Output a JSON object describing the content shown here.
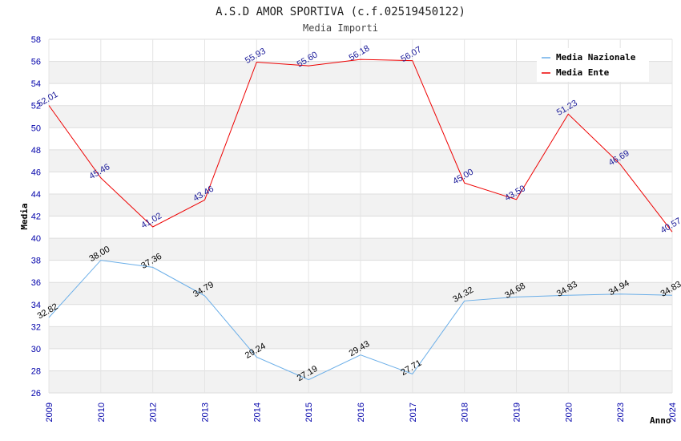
{
  "chart_data": {
    "type": "line",
    "title": "A.S.D AMOR SPORTIVA (c.f.02519450122)",
    "subtitle": "Media Importi",
    "xlabel": "Anno",
    "ylabel": "Media",
    "ylim": [
      26,
      58
    ],
    "ytick_step": 2,
    "grid": true,
    "legend_position": "top-right",
    "categories": [
      "2009",
      "2010",
      "2012",
      "2013",
      "2014",
      "2015",
      "2016",
      "2017",
      "2018",
      "2019",
      "2020",
      "2023",
      "2024"
    ],
    "series": [
      {
        "name": "Media Nazionale",
        "color": "#6aaee8",
        "values": [
          32.82,
          38.0,
          37.36,
          34.79,
          29.24,
          27.19,
          29.43,
          27.71,
          34.32,
          34.68,
          34.83,
          34.94,
          34.83
        ],
        "labels": [
          "32.82",
          "38.00",
          "37.36",
          "34.79",
          "29.24",
          "27.19",
          "29.43",
          "27.71",
          "34.32",
          "34.68",
          "34.83",
          "34.94",
          "34.83"
        ]
      },
      {
        "name": "Media Ente",
        "color": "#ee0000",
        "values": [
          52.01,
          45.46,
          41.02,
          43.46,
          55.93,
          55.6,
          56.18,
          56.07,
          45.0,
          43.5,
          51.23,
          46.69,
          40.57
        ],
        "labels": [
          "52.01",
          "45.46",
          "41.02",
          "43.46",
          "55.93",
          "55.60",
          "56.18",
          "56.07",
          "45.00",
          "43.50",
          "51.23",
          "46.69",
          "40.57"
        ]
      }
    ]
  }
}
